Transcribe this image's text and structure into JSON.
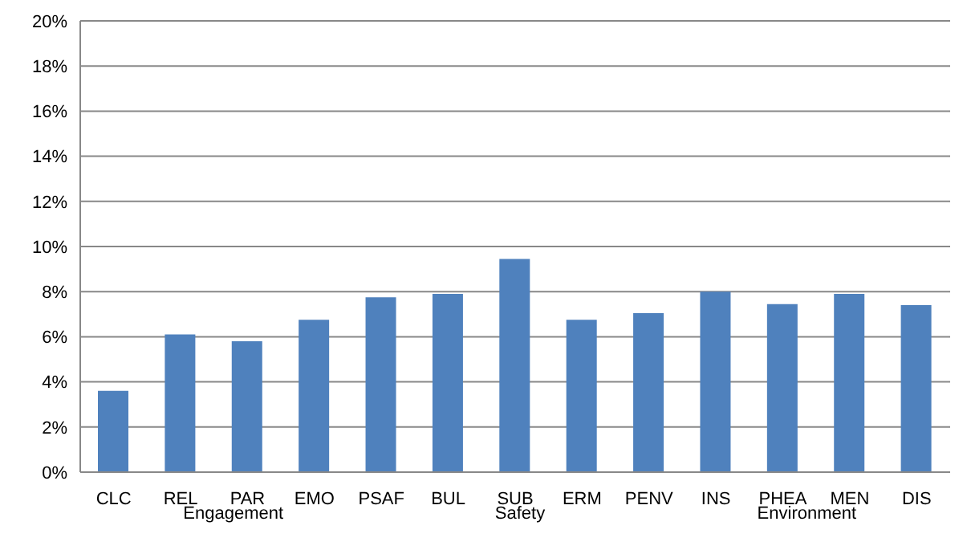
{
  "chart_data": {
    "type": "bar",
    "categories": [
      "CLC",
      "REL",
      "PAR",
      "EMO",
      "PSAF",
      "BUL",
      "SUB",
      "ERM",
      "PENV",
      "INS",
      "PHEA",
      "MEN",
      "DIS"
    ],
    "values": [
      3.6,
      6.1,
      5.8,
      6.75,
      7.75,
      7.9,
      9.45,
      6.75,
      7.05,
      8.0,
      7.45,
      7.9,
      7.4
    ],
    "color": "#4f81bd",
    "ylim": [
      0,
      20
    ],
    "yticks": [
      {
        "value": 0,
        "label": "0%"
      },
      {
        "value": 2,
        "label": "2%"
      },
      {
        "value": 4,
        "label": "4%"
      },
      {
        "value": 6,
        "label": "6%"
      },
      {
        "value": 8,
        "label": "8%"
      },
      {
        "value": 10,
        "label": "10%"
      },
      {
        "value": 12,
        "label": "12%"
      },
      {
        "value": 14,
        "label": "14%"
      },
      {
        "value": 16,
        "label": "16%"
      },
      {
        "value": 18,
        "label": "18%"
      },
      {
        "value": 20,
        "label": "20%"
      }
    ],
    "grid": "y",
    "annotations": [
      "Engagement",
      "Safety",
      "Environment"
    ]
  }
}
